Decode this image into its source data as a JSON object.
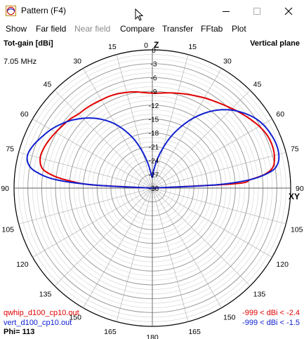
{
  "window": {
    "title": "Pattern   (F4)"
  },
  "menu": [
    "Show",
    "Far field",
    "Near field",
    "Compare",
    "Transfer",
    "FFtab",
    "Plot"
  ],
  "menu_disabled": [
    false,
    false,
    true,
    false,
    false,
    false,
    false
  ],
  "plot": {
    "quantity": "Tot-gain [dBi]",
    "plane": "Vertical plane",
    "frequency": "7.05 MHz",
    "axis_z": "Z",
    "axis_xy": "XY",
    "phi": "Phi= 113",
    "files": [
      {
        "name": "qwhip_d100_cp10.out",
        "range": "-999 < dBi < -2.4",
        "color": "#e00000"
      },
      {
        "name": "vert_d100_cp10.out",
        "range": "-999 < dBi < -1.5",
        "color": "#1020d0"
      }
    ]
  },
  "chart_data": {
    "type": "polar",
    "r_ticks": [
      "0",
      "-3",
      "-6",
      "-9",
      "-12",
      "-15",
      "-18",
      "-21",
      "-24",
      "-27",
      "-30"
    ],
    "angle_labels_right": [
      "0",
      "15",
      "30",
      "45",
      "60",
      "75",
      "90",
      "105",
      "120",
      "135",
      "150",
      "165",
      "180"
    ],
    "angle_labels_left": [
      "15",
      "30",
      "45",
      "60",
      "75",
      "90",
      "105",
      "120",
      "135",
      "150",
      "165"
    ],
    "series": [
      {
        "name": "qwhip_d100_cp10.out",
        "color": "#e00000",
        "angles": [
          -89,
          -87,
          -85,
          -83,
          -80,
          -75,
          -70,
          -65,
          -60,
          -55,
          -50,
          -45,
          -40,
          -35,
          -30,
          -25,
          -20,
          -15,
          -10,
          -5,
          0,
          5,
          10,
          15,
          20,
          25,
          30,
          35,
          40,
          45,
          50,
          55,
          60,
          65,
          70,
          75,
          80,
          83,
          85,
          87,
          89
        ],
        "gain": [
          -30,
          -17,
          -12,
          -8.5,
          -5.8,
          -4.8,
          -4.9,
          -5.3,
          -5.8,
          -6.3,
          -6.7,
          -7.3,
          -7.5,
          -7.7,
          -7.9,
          -8.0,
          -8.2,
          -8.5,
          -8.8,
          -9.2,
          -9.4,
          -9.3,
          -9.0,
          -8.7,
          -8.3,
          -7.9,
          -7.4,
          -6.9,
          -6.3,
          -5.6,
          -4.8,
          -4.0,
          -3.2,
          -2.6,
          -2.4,
          -2.6,
          -3.4,
          -5.4,
          -8.6,
          -12,
          -30
        ]
      },
      {
        "name": "vert_d100_cp10.out",
        "color": "#1020d0",
        "angles": [
          -89,
          -87,
          -85,
          -82,
          -79,
          -75,
          -70,
          -65,
          -60,
          -55,
          -50,
          -45,
          -40,
          -35,
          -30,
          -25,
          -20,
          -15,
          -10,
          -5,
          -2,
          0,
          2,
          5,
          10,
          15,
          20,
          25,
          30,
          35,
          40,
          45,
          50,
          55,
          60,
          65,
          70,
          75,
          79,
          82,
          85,
          87,
          89
        ],
        "gain": [
          -30,
          -18,
          -9,
          -4.5,
          -2.6,
          -2.0,
          -2.6,
          -3.6,
          -4.6,
          -5.8,
          -7.1,
          -8.6,
          -10.2,
          -12,
          -14,
          -16.4,
          -19,
          -21.9,
          -24.7,
          -26.9,
          -27.6,
          -27.6,
          -27.2,
          -25.9,
          -23.5,
          -20.9,
          -18.0,
          -15.3,
          -12.6,
          -10.1,
          -7.9,
          -6.0,
          -4.5,
          -3.2,
          -2.3,
          -1.8,
          -1.5,
          -1.6,
          -2.3,
          -4.0,
          -8.6,
          -16,
          -30
        ]
      }
    ]
  }
}
